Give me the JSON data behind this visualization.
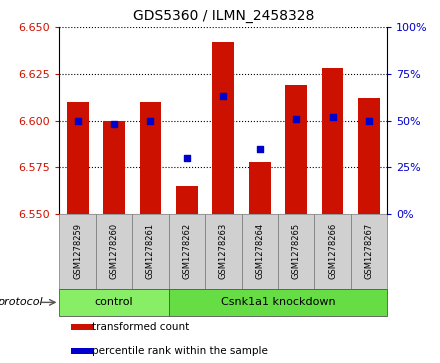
{
  "title": "GDS5360 / ILMN_2458328",
  "samples": [
    "GSM1278259",
    "GSM1278260",
    "GSM1278261",
    "GSM1278262",
    "GSM1278263",
    "GSM1278264",
    "GSM1278265",
    "GSM1278266",
    "GSM1278267"
  ],
  "transformed_count": [
    6.61,
    6.6,
    6.61,
    6.565,
    6.642,
    6.578,
    6.619,
    6.628,
    6.612
  ],
  "percentile_rank": [
    50,
    48,
    50,
    30,
    63,
    35,
    51,
    52,
    50
  ],
  "ylim": [
    6.55,
    6.65
  ],
  "yticks": [
    6.55,
    6.575,
    6.6,
    6.625,
    6.65
  ],
  "right_yticks": [
    0,
    25,
    50,
    75,
    100
  ],
  "right_ylim": [
    0,
    100
  ],
  "bar_color": "#cc1100",
  "dot_color": "#0000cc",
  "bar_bottom": 6.55,
  "bar_width": 0.6,
  "groups": [
    {
      "label": "control",
      "samples": [
        0,
        1,
        2
      ],
      "color": "#88ee66"
    },
    {
      "label": "Csnk1a1 knockdown",
      "samples": [
        3,
        4,
        5,
        6,
        7,
        8
      ],
      "color": "#66dd44"
    }
  ],
  "protocol_label": "protocol",
  "protocol_arrow_color": "#888888",
  "sample_box_color": "#d0d0d0",
  "legend_items": [
    {
      "label": "transformed count",
      "color": "#cc1100"
    },
    {
      "label": "percentile rank within the sample",
      "color": "#0000cc"
    }
  ],
  "title_fontsize": 10,
  "axis_label_fontsize": 8,
  "sample_fontsize": 6,
  "protocol_fontsize": 8,
  "legend_fontsize": 7.5
}
